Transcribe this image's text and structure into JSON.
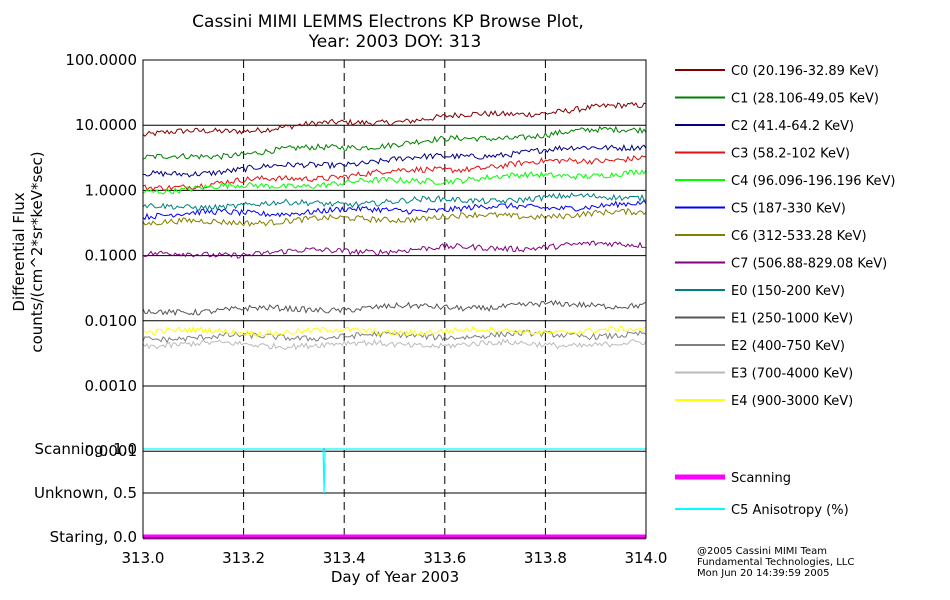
{
  "chart_data": {
    "type": "line",
    "title": [
      "Cassini MIMI LEMMS Electrons KP Browse Plot,",
      "Year: 2003 DOY: 313"
    ],
    "xlabel": "Day of Year 2003",
    "ylabel": [
      "Differential Flux",
      "counts/(cm^2*sr*keV*sec)"
    ],
    "xlim": [
      313.0,
      314.0
    ],
    "x_ticks": [
      "313.0",
      "313.2",
      "313.4",
      "313.6",
      "313.8",
      "314.0"
    ],
    "y_scale": "log",
    "ylim": [
      0.0001,
      100.0
    ],
    "y_ticks": [
      "100.0000",
      "10.0000",
      "1.0000",
      "0.1000",
      "0.0100",
      "0.0010",
      "0.0001"
    ],
    "status_ticks": [
      "Scanning, 1.0",
      "Unknown, 0.5",
      "Staring, 0.0"
    ],
    "grid": "dashed vertical at x ticks, solid horizontal at y ticks",
    "legend_position": "right",
    "series": [
      {
        "name": "C0 (20.196-32.89 KeV)",
        "color": "#800000",
        "start": 7.0,
        "end": 20.0
      },
      {
        "name": "C1 (28.106-49.05 KeV)",
        "color": "#008000",
        "start": 3.0,
        "end": 9.0
      },
      {
        "name": "C2 (41.4-64.2 KeV)",
        "color": "#000080",
        "start": 1.7,
        "end": 5.0
      },
      {
        "name": "C3 (58.2-102 KeV)",
        "color": "#e01010",
        "start": 1.1,
        "end": 3.3
      },
      {
        "name": "C4 (96.096-196.196 KeV)",
        "color": "#00ff00",
        "start": 1.0,
        "end": 1.9
      },
      {
        "name": "C5 (187-330 KeV)",
        "color": "#0000ff",
        "start": 0.42,
        "end": 0.6
      },
      {
        "name": "C6 (312-533.28 KeV)",
        "color": "#808000",
        "start": 0.31,
        "end": 0.45
      },
      {
        "name": "C7 (506.88-829.08 KeV)",
        "color": "#800080",
        "start": 0.1,
        "end": 0.15
      },
      {
        "name": "E0 (150-200 KeV)",
        "color": "#008080",
        "start": 0.55,
        "end": 0.82
      },
      {
        "name": "E1 (250-1000 KeV)",
        "color": "#555555",
        "start": 0.014,
        "end": 0.018
      },
      {
        "name": "E2 (400-750 KeV)",
        "color": "#808080",
        "start": 0.0055,
        "end": 0.0062
      },
      {
        "name": "E3 (700-4000 KeV)",
        "color": "#bbbbbb",
        "start": 0.0043,
        "end": 0.0044
      },
      {
        "name": "E4 (900-3000 KeV)",
        "color": "#ffff00",
        "start": 0.0068,
        "end": 0.007
      }
    ],
    "status_series": [
      {
        "name": "Scanning",
        "color": "#ff00ff",
        "value": 0.0
      },
      {
        "name": "C5 Anisotropy (%)",
        "color": "#00ffff",
        "value": 1.0,
        "dip_x": 313.36,
        "dip_value": 0.5
      }
    ]
  },
  "credit": [
    "@2005 Cassini MIMI Team",
    "Fundamental Technologies, LLC",
    "Mon Jun 20 14:39:59 2005"
  ]
}
